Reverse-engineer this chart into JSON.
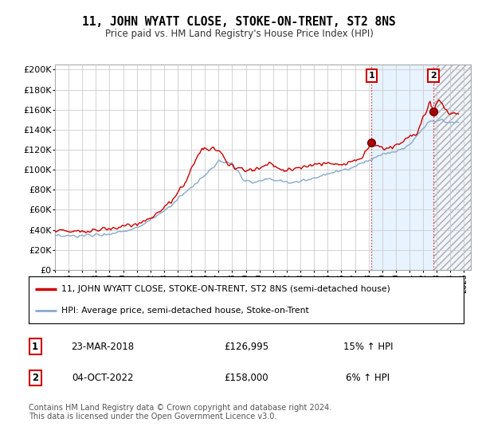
{
  "title": "11, JOHN WYATT CLOSE, STOKE-ON-TRENT, ST2 8NS",
  "subtitle": "Price paid vs. HM Land Registry's House Price Index (HPI)",
  "legend_line1": "11, JOHN WYATT CLOSE, STOKE-ON-TRENT, ST2 8NS (semi-detached house)",
  "legend_line2": "HPI: Average price, semi-detached house, Stoke-on-Trent",
  "transaction1_date": "23-MAR-2018",
  "transaction1_price": "£126,995",
  "transaction1_hpi": "15% ↑ HPI",
  "transaction2_date": "04-OCT-2022",
  "transaction2_price": "£158,000",
  "transaction2_hpi": "6% ↑ HPI",
  "footer": "Contains HM Land Registry data © Crown copyright and database right 2024.\nThis data is licensed under the Open Government Licence v3.0.",
  "ylim": [
    0,
    205000
  ],
  "yticks": [
    0,
    20000,
    40000,
    60000,
    80000,
    100000,
    120000,
    140000,
    160000,
    180000,
    200000
  ],
  "ytick_labels": [
    "£0",
    "£20K",
    "£40K",
    "£60K",
    "£80K",
    "£100K",
    "£120K",
    "£140K",
    "£160K",
    "£180K",
    "£200K"
  ],
  "red_color": "#cc0000",
  "blue_color": "#88aacc",
  "marker1_x": 2018.22,
  "marker1_y": 126995,
  "marker2_x": 2022.75,
  "marker2_y": 158000,
  "vline1_x": 2018.22,
  "vline2_x": 2022.75,
  "xmin": 1995,
  "xmax": 2025.5
}
